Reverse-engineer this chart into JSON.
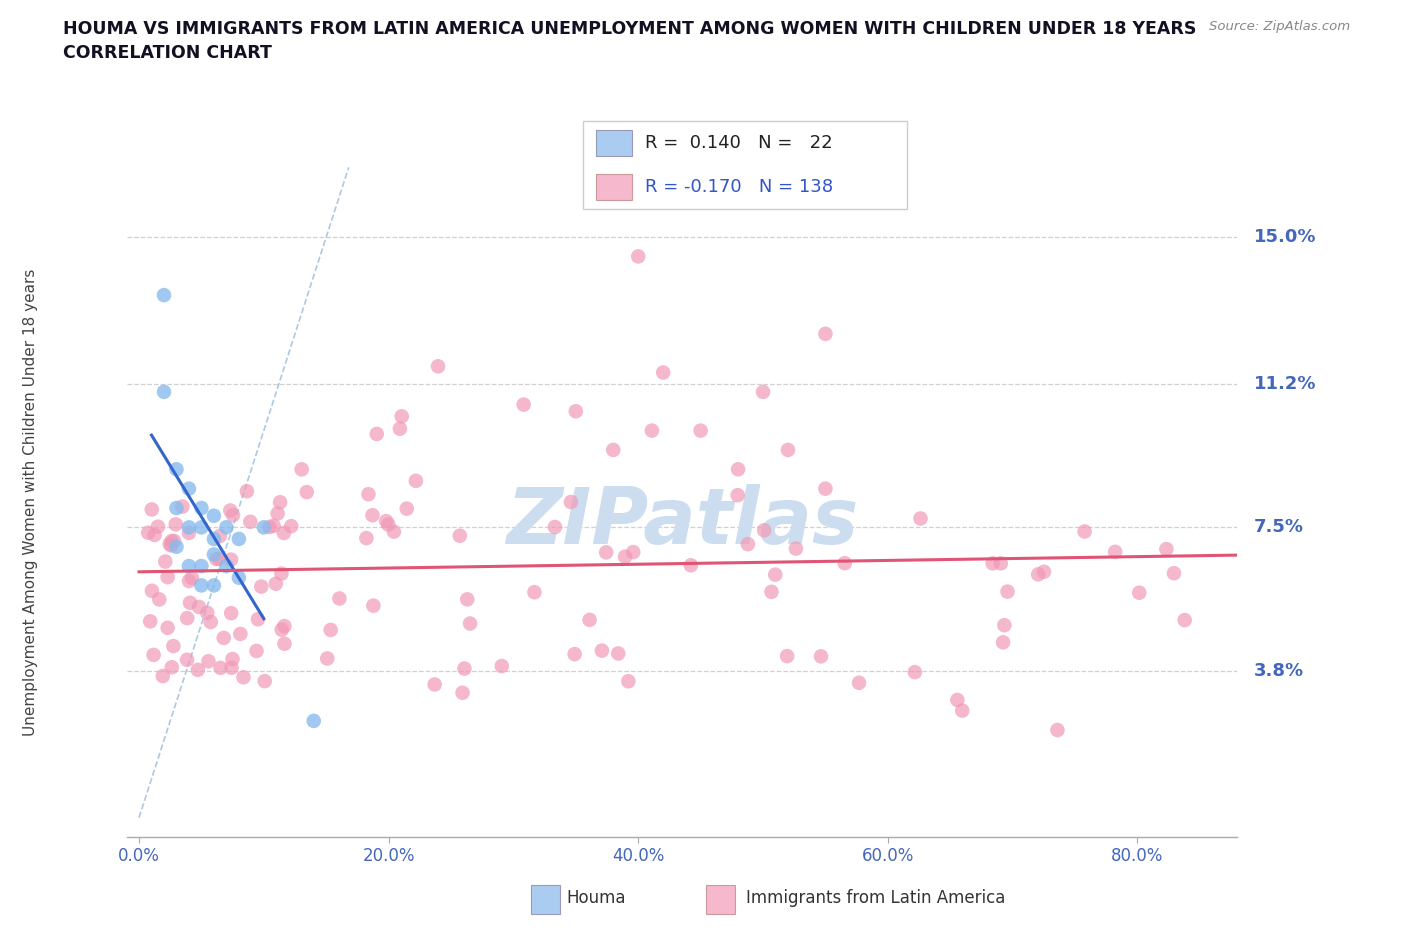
{
  "title_line1": "HOUMA VS IMMIGRANTS FROM LATIN AMERICA UNEMPLOYMENT AMONG WOMEN WITH CHILDREN UNDER 18 YEARS",
  "title_line2": "CORRELATION CHART",
  "source_text": "Source: ZipAtlas.com",
  "ylabel": "Unemployment Among Women with Children Under 18 years",
  "xlabel_ticks": [
    "0.0%",
    "20.0%",
    "40.0%",
    "60.0%",
    "80.0%"
  ],
  "xlabel_vals": [
    0.0,
    0.2,
    0.4,
    0.6,
    0.8
  ],
  "ylabel_ticks": [
    "3.8%",
    "7.5%",
    "11.2%",
    "15.0%"
  ],
  "ylabel_vals": [
    0.038,
    0.075,
    0.112,
    0.15
  ],
  "xlim": [
    -0.01,
    0.88
  ],
  "ylim": [
    -0.005,
    0.168
  ],
  "houma_scatter_color": "#88bbee",
  "latin_scatter_color": "#f099b5",
  "trendline_houma_color": "#3366cc",
  "trendline_latin_color": "#e05575",
  "houma_legend_color": "#aaccf0",
  "latin_legend_color": "#f5b8cc",
  "diagonal_color": "#99bbdd",
  "watermark_text": "ZIPatlas",
  "watermark_color": "#ccddf0",
  "grid_color": "#d0d0d0",
  "title_color": "#111122",
  "axis_tick_color": "#4466bb",
  "source_color": "#888888",
  "legend_border_color": "#cccccc"
}
